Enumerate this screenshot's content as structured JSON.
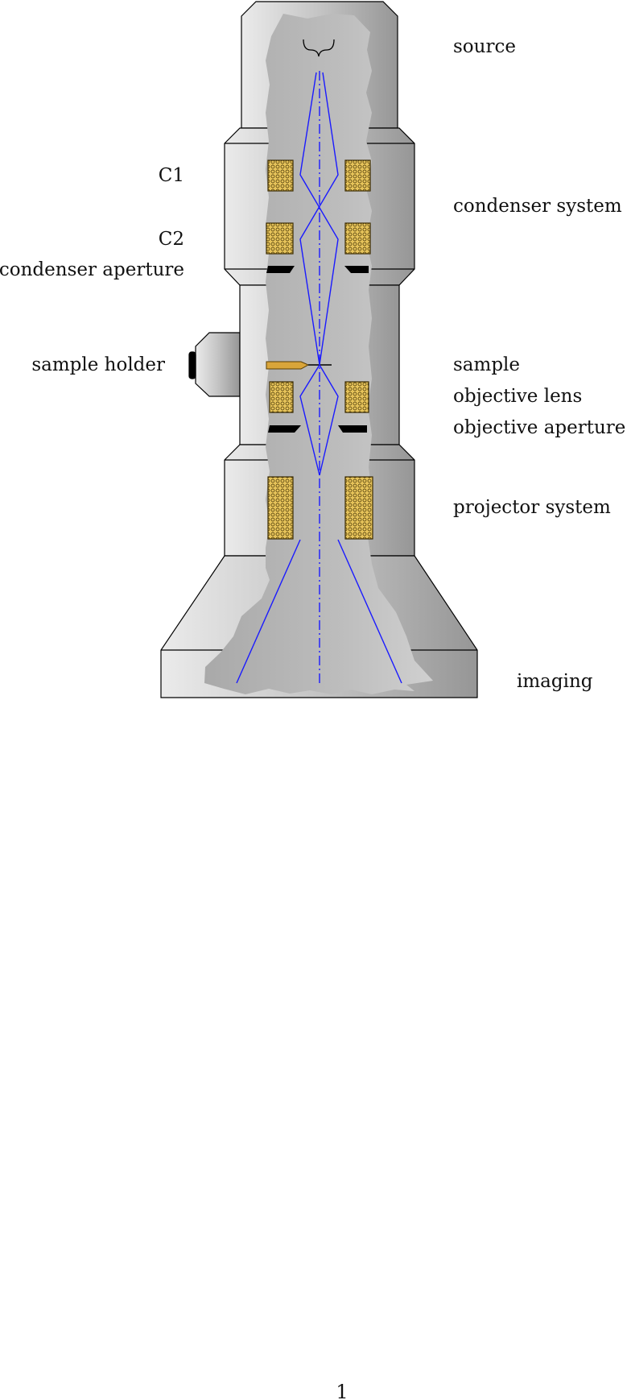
{
  "labels": {
    "source": "source",
    "condenser_system": "condenser system",
    "c1": "C1",
    "c2": "C2",
    "condenser_aperture": "condenser aperture",
    "sample_holder": "sample holder",
    "sample": "sample",
    "objective_lens": "objective lens",
    "objective_aperture": "objective aperture",
    "projector_system": "projector system",
    "imaging": "imaging"
  },
  "page_number": "1",
  "colors": {
    "housing_light": "#e8e8e8",
    "housing_dark": "#999999",
    "cutaway_interior": "#b3b3b3",
    "coil": "#d9b24a",
    "beam": "#1a1aff",
    "aperture": "#000000"
  }
}
